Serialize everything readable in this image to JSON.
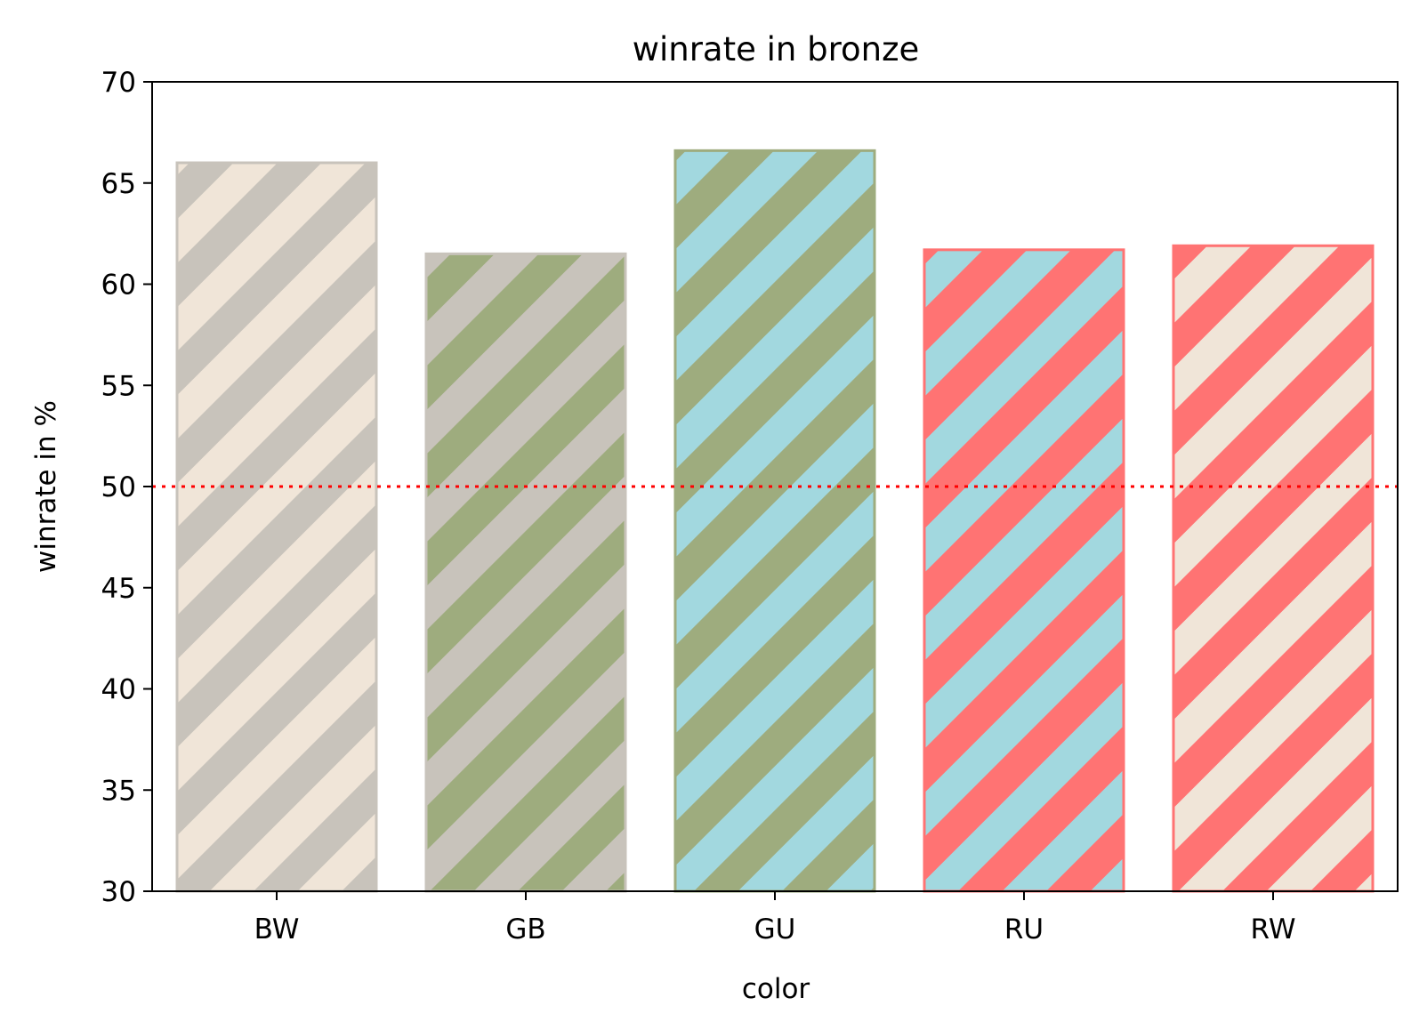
{
  "chart_data": {
    "type": "bar",
    "title": "winrate in bronze",
    "xlabel": "color",
    "ylabel": "winrate in %",
    "categories": [
      "BW",
      "GB",
      "GU",
      "RU",
      "RW"
    ],
    "values": [
      66.0,
      61.5,
      66.6,
      61.7,
      61.9
    ],
    "ylim": [
      0,
      70
    ],
    "yview": [
      30,
      70
    ],
    "yticks": [
      30,
      35,
      40,
      45,
      50,
      55,
      60,
      65,
      70
    ],
    "grid": false,
    "legend": "none",
    "reference_line": {
      "value": 50,
      "color": "#ff0000",
      "style": "dotted"
    },
    "bar_styles": [
      {
        "face": "#f0e5d8",
        "stripe": "#c8c3bb",
        "edge": "#c8c3bb"
      },
      {
        "face": "#c8c3bb",
        "stripe": "#9eac7e",
        "edge": "#c8c3bb"
      },
      {
        "face": "#a2d8df",
        "stripe": "#9eac7e",
        "edge": "#9eac7e"
      },
      {
        "face": "#a2d8df",
        "stripe": "#ff7373",
        "edge": "#ff7373"
      },
      {
        "face": "#f0e5d8",
        "stripe": "#ff7373",
        "edge": "#ff7373"
      }
    ]
  }
}
